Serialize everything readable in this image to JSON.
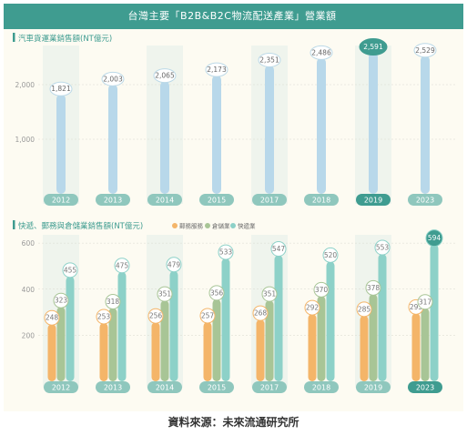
{
  "title": "台灣主要「B2B&B2C物流配送產業」營業額",
  "source": "資料來源：未來流通研究所",
  "colors": {
    "header": "#3f9c90",
    "bar_light": "#b8d8ea",
    "column_shade": "#e3eee9",
    "delivery": "#f4b569",
    "storage": "#a8c596",
    "express": "#8dd1c8"
  },
  "chart_data": [
    {
      "type": "bar",
      "title": "汽車貨運業銷售額(NT億元)",
      "categories": [
        "2012",
        "2013",
        "2014",
        "2015",
        "2017",
        "2018",
        "2019",
        "2023"
      ],
      "values": [
        1821,
        2003,
        2065,
        2173,
        2351,
        2486,
        2591,
        2529
      ],
      "value_labels": [
        "1,821",
        "2,003",
        "2,065",
        "2,173",
        "2,351",
        "2,486",
        "2,591",
        "2,529"
      ],
      "yticks": [
        "2,000",
        "1,000"
      ],
      "ylim": [
        0,
        2650
      ],
      "highlight_index": 6
    },
    {
      "type": "bar",
      "title": "快遞、郵務與倉儲業銷售額(NT億元)",
      "categories": [
        "2012",
        "2013",
        "2014",
        "2015",
        "2017",
        "2018",
        "2019",
        "2023"
      ],
      "series": [
        {
          "name": "郵務服務",
          "values": [
            248,
            253,
            256,
            257,
            268,
            292,
            285,
            295
          ]
        },
        {
          "name": "倉儲業",
          "values": [
            323,
            318,
            351,
            356,
            351,
            370,
            378,
            317
          ]
        },
        {
          "name": "快遞業",
          "values": [
            455,
            475,
            479,
            533,
            547,
            520,
            553,
            594
          ]
        }
      ],
      "yticks": [
        "600",
        "400",
        "200"
      ],
      "ylim": [
        0,
        640
      ],
      "highlight_index": 7
    }
  ]
}
